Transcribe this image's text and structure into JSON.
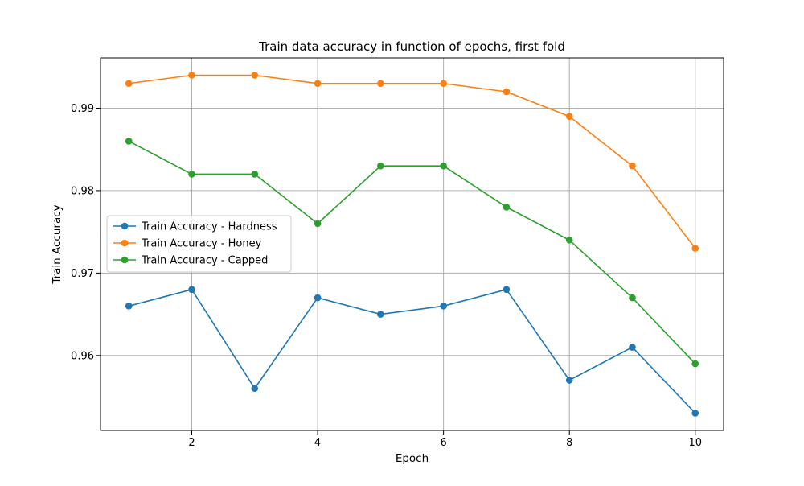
{
  "chart_data": {
    "type": "line",
    "title": "Train data accuracy in function of epochs, first fold",
    "xlabel": "Epoch",
    "ylabel": "Train Accuracy",
    "x": [
      1,
      2,
      3,
      4,
      5,
      6,
      7,
      8,
      9,
      10
    ],
    "xlim": [
      0.55,
      10.45
    ],
    "ylim": [
      0.9509,
      0.9961
    ],
    "xticks": [
      2,
      4,
      6,
      8,
      10
    ],
    "yticks": [
      0.96,
      0.97,
      0.98,
      0.99
    ],
    "xtick_labels": [
      "2",
      "4",
      "6",
      "8",
      "10"
    ],
    "ytick_labels": [
      "0.96",
      "0.97",
      "0.98",
      "0.99"
    ],
    "grid": true,
    "legend_position": "center-left",
    "series": [
      {
        "name": "Train Accuracy - Hardness",
        "color": "#1f77b4",
        "marker": "circle",
        "values": [
          0.966,
          0.968,
          0.956,
          0.967,
          0.965,
          0.966,
          0.968,
          0.957,
          0.961,
          0.953
        ]
      },
      {
        "name": "Train Accuracy - Honey",
        "color": "#ff7f0e",
        "marker": "circle",
        "values": [
          0.993,
          0.994,
          0.994,
          0.993,
          0.993,
          0.993,
          0.992,
          0.989,
          0.983,
          0.973
        ]
      },
      {
        "name": "Train Accuracy - Capped",
        "color": "#2ca02c",
        "marker": "circle",
        "values": [
          0.986,
          0.982,
          0.982,
          0.976,
          0.983,
          0.983,
          0.978,
          0.974,
          0.967,
          0.959
        ]
      }
    ]
  }
}
